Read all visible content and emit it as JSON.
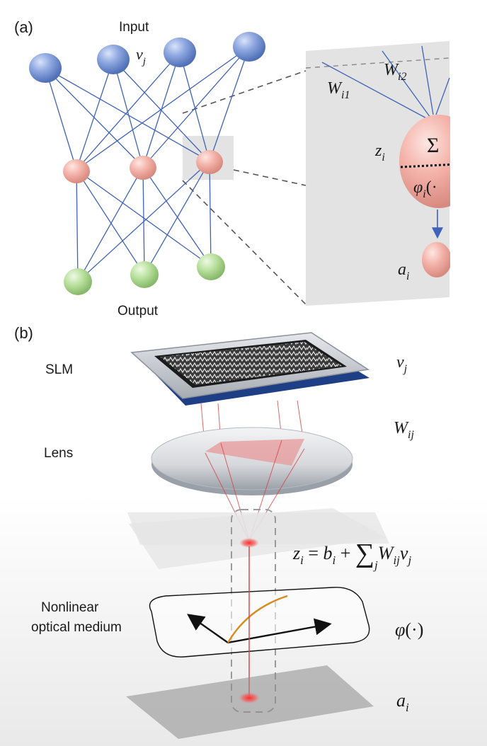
{
  "panel_a": {
    "label": "(a)",
    "input_label": "Input",
    "output_label": "Output",
    "v_sym": "v",
    "v_sub": "j",
    "w1_sym": "W",
    "w1_sub": "i1",
    "w2_sym": "W",
    "w2_sub": "i2",
    "z_sym": "z",
    "z_sub": "i",
    "sum_sym": "Σ",
    "phi_sym": "φ",
    "phi_sub": "i",
    "phi_arg": "(·",
    "a_sym": "a",
    "a_sub": "i"
  },
  "panel_b": {
    "label": "(b)",
    "slm_label": "SLM",
    "lens_label": "Lens",
    "medium_label_1": "Nonlinear",
    "medium_label_2": "optical medium",
    "v_sym": "v",
    "v_sub": "j",
    "w_sym": "W",
    "w_sub": "ij",
    "eq_z": "z",
    "eq_z_sub": "i",
    "eq_eq": " = ",
    "eq_b": "b",
    "eq_b_sub": "i",
    "eq_plus": " + ",
    "eq_sum": "∑",
    "eq_sum_sub": "j",
    "eq_w": "W",
    "eq_w_sub": "ij",
    "eq_v": "v",
    "eq_v_sub": "j",
    "phi_sym": "φ",
    "phi_arg": "(·)",
    "a_sym": "a",
    "a_sub": "i"
  },
  "colors": {
    "input_node": "#6f8fd0",
    "hidden_node": "#f0a8a0",
    "output_node": "#a9d88e",
    "edge": "#3f63b8",
    "beam": "#d84040",
    "curve": "#d98a1a",
    "slm_frame": "#1e3f86"
  }
}
